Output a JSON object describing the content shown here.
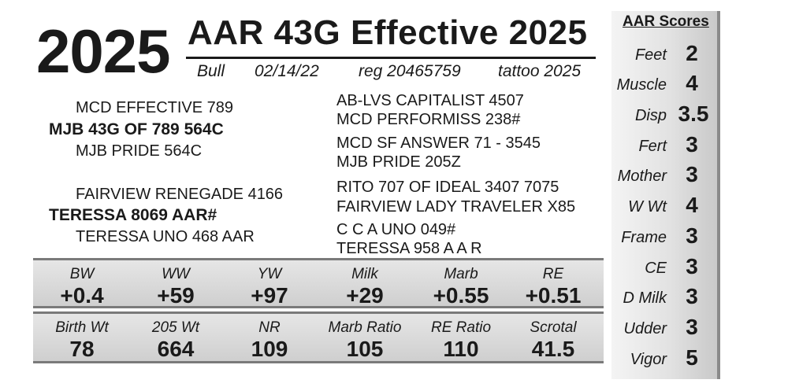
{
  "lot": "2025",
  "title": "AAR 43G Effective 2025",
  "meta": {
    "sex": "Bull",
    "birth_date": "02/14/22",
    "reg": "reg 20465759",
    "tattoo": "tattoo 2025"
  },
  "pedigree": {
    "sire": "MJB 43G OF 789 564C",
    "sire_sire": "MCD EFFECTIVE 789",
    "sire_dam": "MJB PRIDE 564C",
    "sire_sire_sire": "AB-LVS CAPITALIST 4507",
    "sire_sire_dam": "MCD PERFORMISS 238#",
    "sire_dam_sire": "MCD SF ANSWER 71 - 3545",
    "sire_dam_dam": "MJB PRIDE 205Z",
    "dam": "TERESSA 8069 AAR#",
    "dam_sire": "FAIRVIEW RENEGADE 4166",
    "dam_dam": "TERESSA UNO 468 AAR",
    "dam_sire_sire": "RITO 707 OF IDEAL 3407 7075",
    "dam_sire_dam": "FAIRVIEW LADY TRAVELER X85",
    "dam_dam_sire": "C C A UNO 049#",
    "dam_dam_dam": "TERESSA 958 A A R"
  },
  "epds": [
    {
      "label": "BW",
      "value": "+0.4"
    },
    {
      "label": "WW",
      "value": "+59"
    },
    {
      "label": "YW",
      "value": "+97"
    },
    {
      "label": "Milk",
      "value": "+29"
    },
    {
      "label": "Marb",
      "value": "+0.55"
    },
    {
      "label": "RE",
      "value": "+0.51"
    }
  ],
  "actuals": [
    {
      "label": "Birth Wt",
      "value": "78"
    },
    {
      "label": "205 Wt",
      "value": "664"
    },
    {
      "label": "NR",
      "value": "109"
    },
    {
      "label": "Marb Ratio",
      "value": "105"
    },
    {
      "label": "RE Ratio",
      "value": "110"
    },
    {
      "label": "Scrotal",
      "value": "41.5"
    }
  ],
  "scores": {
    "title": "AAR Scores",
    "items": [
      {
        "label": "Feet",
        "value": "2"
      },
      {
        "label": "Muscle",
        "value": "4"
      },
      {
        "label": "Disp",
        "value": "3.5"
      },
      {
        "label": "Fert",
        "value": "3"
      },
      {
        "label": "Mother",
        "value": "3"
      },
      {
        "label": "W Wt",
        "value": "4"
      },
      {
        "label": "Frame",
        "value": "3"
      },
      {
        "label": "CE",
        "value": "3"
      },
      {
        "label": "D Milk",
        "value": "3"
      },
      {
        "label": "Udder",
        "value": "3"
      },
      {
        "label": "Vigor",
        "value": "5"
      }
    ]
  }
}
